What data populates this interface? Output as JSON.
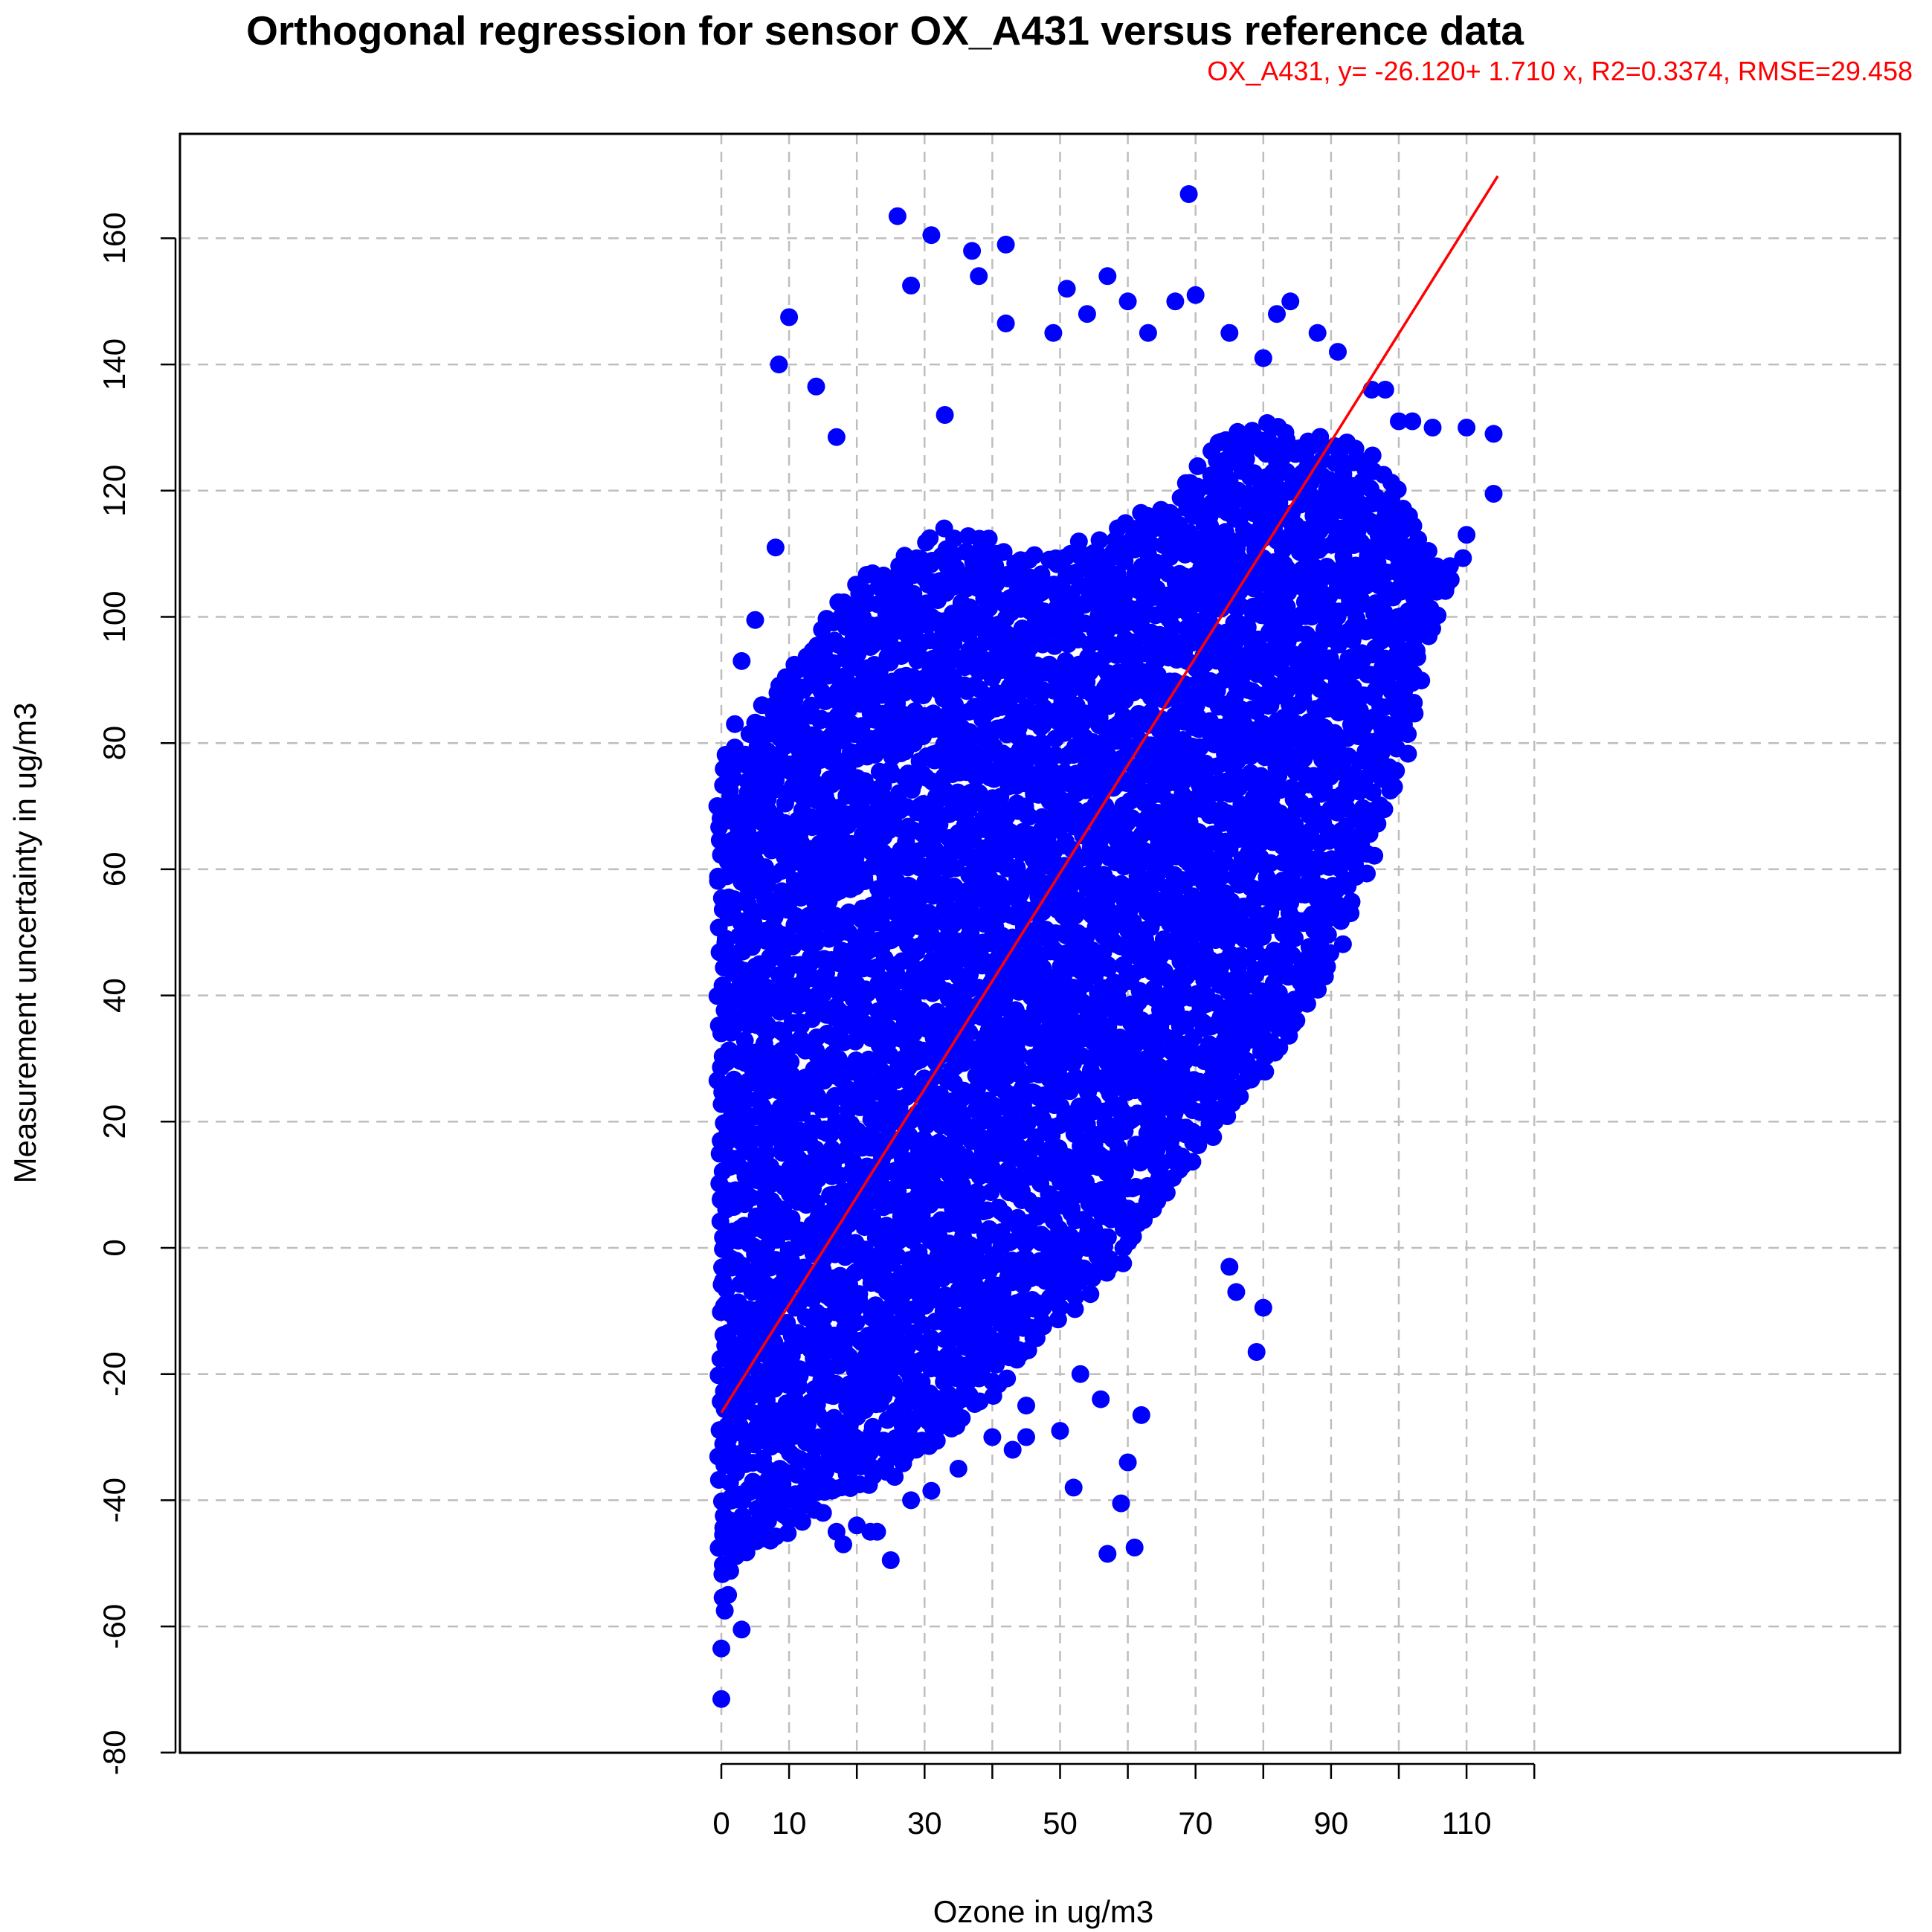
{
  "chart_data": {
    "type": "scatter",
    "title": "Orthogonal regression for sensor OX_A431 versus reference data",
    "subtitle": "OX_A431, y= -26.120+ 1.710 x, R2=0.3374, RMSE=29.458",
    "xlabel": "Ozone in ug/m3",
    "ylabel": "Measurement uncertainty in ug/m3",
    "xlim": [
      -80,
      175
    ],
    "ylim": [
      -80,
      170
    ],
    "x_ticks": [
      0,
      10,
      20,
      30,
      40,
      50,
      60,
      70,
      80,
      90,
      100,
      110,
      120
    ],
    "x_tick_labels": [
      "0",
      "10",
      "",
      "30",
      "",
      "50",
      "",
      "70",
      "",
      "90",
      "",
      "110",
      ""
    ],
    "y_ticks": [
      -80,
      -60,
      -40,
      -20,
      0,
      20,
      40,
      60,
      80,
      100,
      120,
      140,
      160
    ],
    "y_tick_labels": [
      "-80",
      "-60",
      "-40",
      "-20",
      "0",
      "20",
      "40",
      "60",
      "80",
      "100",
      "120",
      "140",
      "160"
    ],
    "grid": true,
    "colors": {
      "points": "#0000ff",
      "fit_line": "#ff0000",
      "grid": "#bebebe"
    },
    "fit_line": {
      "intercept": -26.12,
      "slope": 1.71,
      "x_range": [
        0,
        114.6
      ]
    },
    "point_cloud_envelope": {
      "x": [
        0,
        2,
        5,
        10,
        15,
        20,
        25,
        30,
        35,
        40,
        45,
        50,
        55,
        60,
        65,
        70,
        75,
        80,
        85,
        90,
        95,
        100,
        105,
        110
      ],
      "y_low": [
        -55,
        -50,
        -47,
        -44,
        -40,
        -38,
        -36,
        -32,
        -28,
        -22,
        -17,
        -10,
        -6,
        0,
        8,
        15,
        22,
        28,
        35,
        45,
        60,
        75,
        100,
        110
      ],
      "y_high": [
        75,
        80,
        85,
        92,
        100,
        105,
        108,
        112,
        114,
        112,
        110,
        110,
        112,
        115,
        118,
        125,
        130,
        130,
        130,
        128,
        126,
        120,
        110,
        110
      ]
    },
    "series": [
      {
        "x": [
          0,
          0,
          0.5,
          1,
          3,
          8,
          8.5,
          10,
          5,
          3,
          2,
          5,
          17,
          14,
          26,
          28,
          31,
          33,
          37,
          38,
          42,
          42,
          49,
          51,
          54,
          57,
          60,
          63,
          67,
          69,
          70,
          75,
          80,
          82,
          84,
          88,
          91,
          96,
          98,
          100,
          102,
          105,
          110,
          114,
          114,
          110,
          104,
          100,
          91,
          89,
          85,
          82,
          78,
          73,
          69,
          62,
          60,
          59,
          58,
          54,
          53,
          52,
          45,
          43,
          40,
          35,
          31,
          28,
          25,
          23,
          20,
          17,
          15,
          12,
          10,
          4,
          2,
          75,
          76,
          80,
          79,
          56,
          57,
          59,
          60,
          61,
          62,
          50,
          45,
          22,
          18
        ],
        "y": [
          -71.5,
          -63.5,
          -57.5,
          -55,
          -60.5,
          111,
          140,
          147.5,
          99.5,
          93,
          83,
          82,
          128.5,
          136.5,
          163.5,
          152.5,
          160.5,
          132,
          158,
          154,
          159,
          146.5,
          145,
          152,
          148,
          154,
          150,
          145,
          150,
          167,
          151,
          145,
          141,
          148,
          150,
          145,
          142,
          136,
          136,
          131,
          131,
          130,
          130,
          129,
          119.5,
          113,
          105,
          108,
          105,
          98,
          90,
          74.5,
          60,
          52,
          50,
          40,
          30,
          20,
          10,
          0,
          -20,
          -38,
          -25,
          -32,
          -30,
          -35,
          -38.5,
          -40,
          -49.5,
          -45,
          -44,
          -45,
          -42,
          -40,
          -43,
          -46,
          -48,
          -3,
          -7,
          -9.5,
          -16.5,
          -24,
          -48.5,
          -40.5,
          -34,
          -47.5,
          -26.5,
          -29,
          -30,
          -45,
          -47
        ]
      }
    ]
  }
}
